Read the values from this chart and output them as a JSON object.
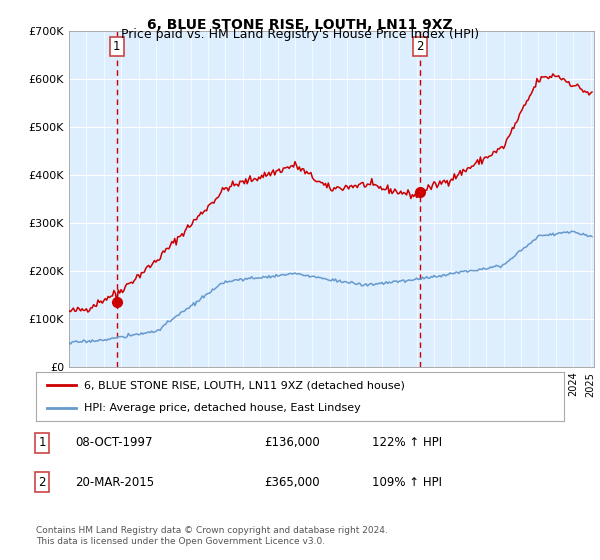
{
  "title": "6, BLUE STONE RISE, LOUTH, LN11 9XZ",
  "subtitle": "Price paid vs. HM Land Registry's House Price Index (HPI)",
  "legend_entry1": "6, BLUE STONE RISE, LOUTH, LN11 9XZ (detached house)",
  "legend_entry2": "HPI: Average price, detached house, East Lindsey",
  "footnote": "Contains HM Land Registry data © Crown copyright and database right 2024.\nThis data is licensed under the Open Government Licence v3.0.",
  "table_row1_num": "1",
  "table_row1_date": "08-OCT-1997",
  "table_row1_price": "£136,000",
  "table_row1_hpi": "122% ↑ HPI",
  "table_row2_num": "2",
  "table_row2_date": "20-MAR-2015",
  "table_row2_price": "£365,000",
  "table_row2_hpi": "109% ↑ HPI",
  "sale1_year": 1997.75,
  "sale1_price": 136000,
  "sale2_year": 2015.2,
  "sale2_price": 365000,
  "ylim": [
    0,
    700000
  ],
  "yticks": [
    0,
    100000,
    200000,
    300000,
    400000,
    500000,
    600000,
    700000
  ],
  "ytick_labels": [
    "£0",
    "£100K",
    "£200K",
    "£300K",
    "£400K",
    "£500K",
    "£600K",
    "£700K"
  ],
  "background_color": "#ddeeff",
  "line_color_red": "#cc0000",
  "line_color_blue": "#6699cc",
  "marker_color_red": "#cc0000",
  "grid_color": "#ffffff",
  "dashed_line_color": "#cc0000",
  "title_fontsize": 10,
  "subtitle_fontsize": 9,
  "box_edge_color": "#cc4444"
}
